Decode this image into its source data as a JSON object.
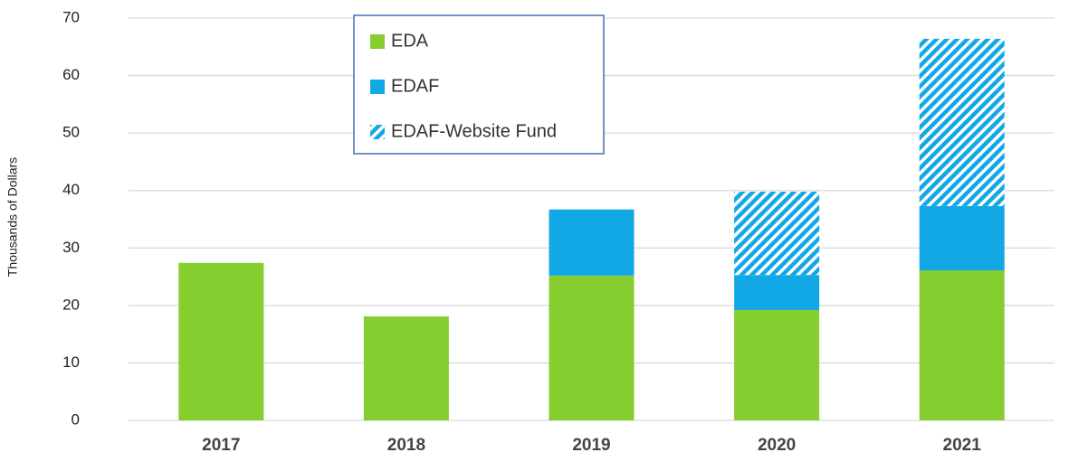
{
  "chart_data": {
    "type": "stacked_bar",
    "y_label": "Thousands of Dollars",
    "categories": [
      "2017",
      "2018",
      "2019",
      "2020",
      "2021"
    ],
    "series": [
      {
        "name": "EDA",
        "color": "#86cd2f",
        "values": [
          27.4,
          18.1,
          25.2,
          19.2,
          26.1
        ]
      },
      {
        "name": "EDAF",
        "color": "#12a8e6",
        "values": [
          null,
          null,
          11.5,
          6.1,
          11.2
        ]
      },
      {
        "name": "EDAF-Website Fund",
        "color": "#12a8e6",
        "pattern": "hatch",
        "values": [
          null,
          null,
          null,
          14.5,
          29.1
        ]
      }
    ],
    "ylim": [
      0,
      70
    ],
    "yticks": [
      0,
      10,
      20,
      30,
      40,
      50,
      60,
      70
    ],
    "grid": true
  }
}
